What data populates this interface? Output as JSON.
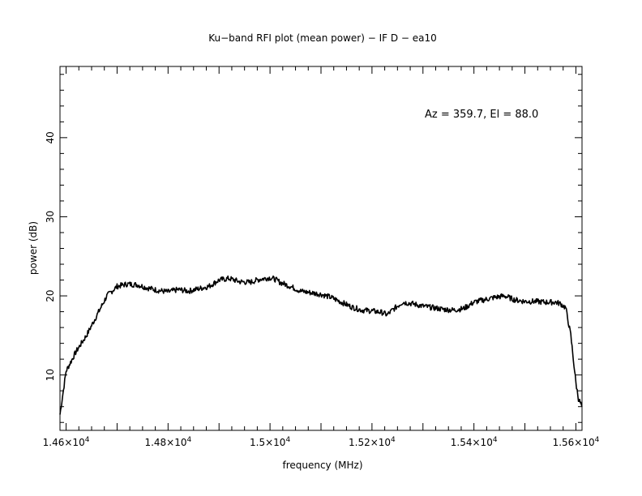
{
  "chart_data": {
    "type": "line",
    "title": "Ku−band RFI plot (mean power) − IF D − ea10",
    "xlabel": "frequency (MHz)",
    "ylabel": "power (dB)",
    "annotation": "Az = 359.7, El = 88.0",
    "xlim": [
      14588,
      15612
    ],
    "ylim": [
      3,
      49
    ],
    "x_ticks": [
      {
        "value": 14600,
        "mantissa": "1.46×10",
        "exp": "4"
      },
      {
        "value": 14800,
        "mantissa": "1.48×10",
        "exp": "4"
      },
      {
        "value": 15000,
        "mantissa": "1.5×10",
        "exp": "4"
      },
      {
        "value": 15200,
        "mantissa": "1.52×10",
        "exp": "4"
      },
      {
        "value": 15400,
        "mantissa": "1.54×10",
        "exp": "4"
      },
      {
        "value": 15600,
        "mantissa": "1.56×10",
        "exp": "4"
      }
    ],
    "y_ticks": [
      {
        "value": 10,
        "label": "10"
      },
      {
        "value": 20,
        "label": "20"
      },
      {
        "value": 30,
        "label": "30"
      },
      {
        "value": 40,
        "label": "40"
      }
    ],
    "grid": false,
    "series": [
      {
        "color": "#000000",
        "x": [
          14588,
          14600,
          14620,
          14640,
          14660,
          14680,
          14700,
          14720,
          14740,
          14760,
          14780,
          14800,
          14820,
          14840,
          14860,
          14880,
          14900,
          14920,
          14940,
          14960,
          14980,
          15000,
          15010,
          15020,
          15040,
          15060,
          15080,
          15100,
          15120,
          15140,
          15160,
          15180,
          15200,
          15220,
          15230,
          15240,
          15260,
          15280,
          15300,
          15320,
          15340,
          15360,
          15380,
          15400,
          15420,
          15440,
          15460,
          15480,
          15500,
          15520,
          15540,
          15560,
          15570,
          15580,
          15590,
          15600,
          15605,
          15612
        ],
        "y": [
          5.0,
          10.5,
          13.0,
          15.0,
          17.5,
          20.0,
          21.2,
          21.5,
          21.4,
          21.0,
          20.7,
          20.5,
          20.8,
          20.6,
          20.9,
          21.2,
          22.0,
          22.2,
          21.8,
          21.7,
          22.1,
          22.3,
          22.1,
          21.7,
          21.2,
          20.6,
          20.4,
          20.2,
          19.8,
          19.2,
          18.6,
          18.2,
          18.1,
          17.9,
          17.6,
          18.2,
          19.2,
          19.0,
          18.7,
          18.5,
          18.3,
          18.2,
          18.4,
          19.2,
          19.5,
          19.8,
          20.0,
          19.5,
          19.3,
          19.3,
          19.2,
          19.2,
          19.0,
          18.5,
          15.0,
          9.0,
          7.0,
          6.0
        ]
      }
    ]
  }
}
